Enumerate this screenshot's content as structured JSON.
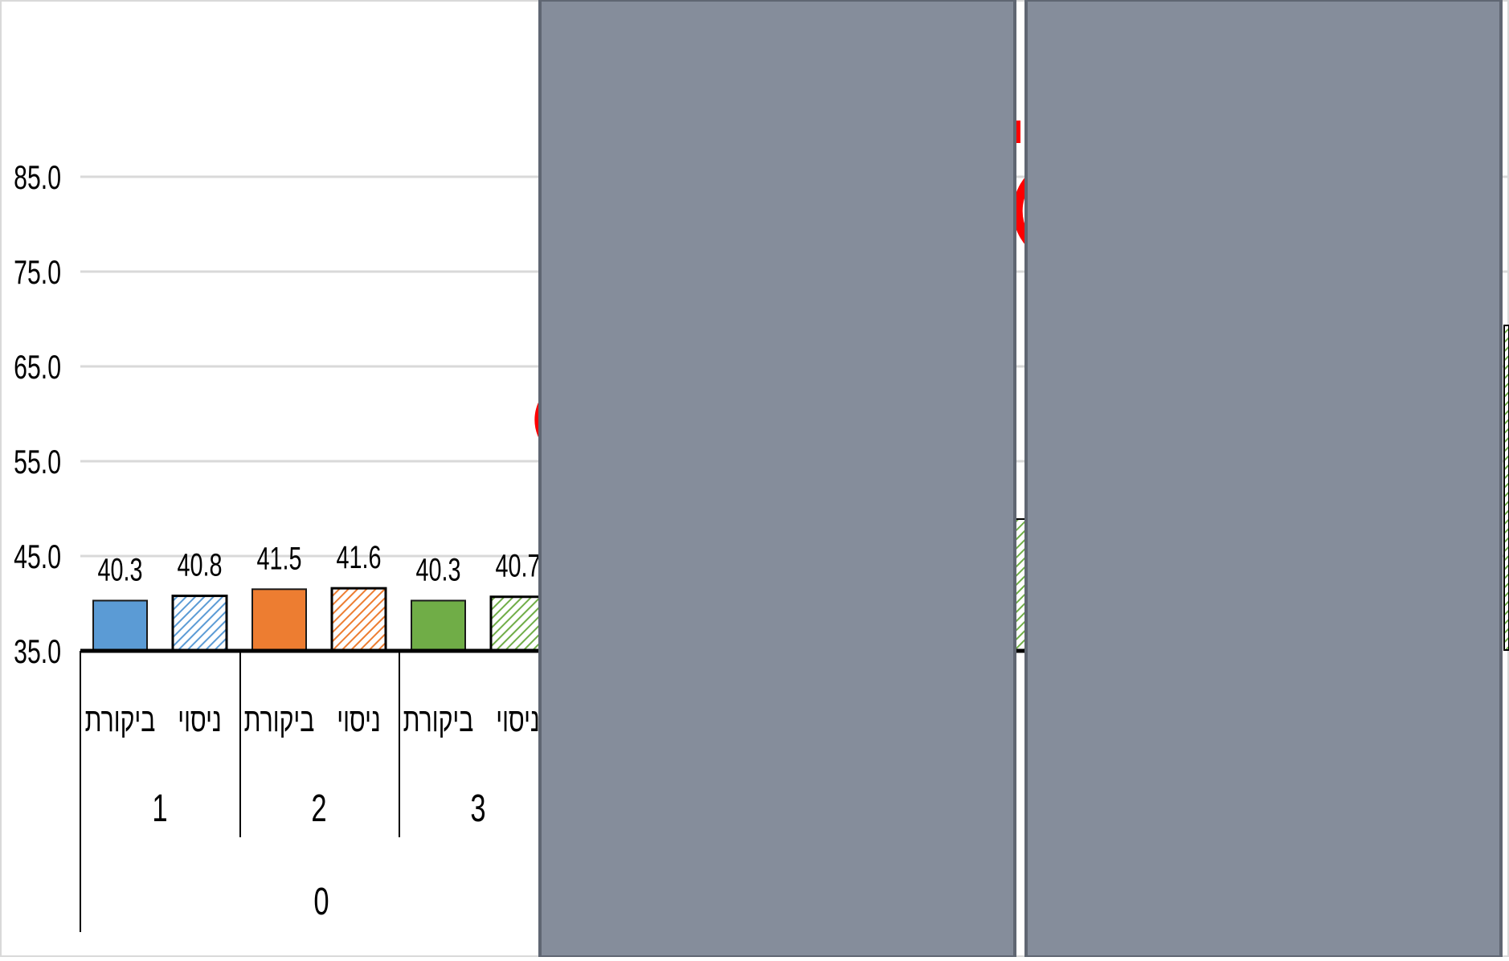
{
  "chart_data": {
    "type": "bar",
    "yticks": [
      "85.0",
      "75.0",
      "65.0",
      "55.0",
      "45.0",
      "35.0"
    ],
    "ylim": [
      35,
      85
    ],
    "grid": true,
    "colors": {
      "group1": "#5b9bd5",
      "group2": "#ed7d31",
      "group3": "#70ad47",
      "annotation": "#ff0000",
      "occluder": "#858d9b"
    },
    "bars": [
      {
        "group": "1",
        "category": "ביקורת",
        "value": 40.3,
        "label": "40.3",
        "pattern": "solid",
        "color": "#5b9bd5"
      },
      {
        "group": "1",
        "category": "ניסוי",
        "value": 40.8,
        "label": "40.8",
        "pattern": "hatched",
        "color": "#5b9bd5"
      },
      {
        "group": "2",
        "category": "ביקורת",
        "value": 41.5,
        "label": "41.5",
        "pattern": "solid",
        "color": "#ed7d31"
      },
      {
        "group": "2",
        "category": "ניסוי",
        "value": 41.6,
        "label": "41.6",
        "pattern": "hatched",
        "color": "#ed7d31"
      },
      {
        "group": "3",
        "category": "ביקורת",
        "value": 40.3,
        "label": "40.3",
        "pattern": "solid",
        "color": "#70ad47"
      },
      {
        "group": "3",
        "category": "ניסוי",
        "value": 40.7,
        "label": "40.7",
        "pattern": "hatched",
        "color": "#70ad47"
      }
    ],
    "groups": [
      "1",
      "2",
      "3"
    ],
    "outer_group": "0"
  }
}
